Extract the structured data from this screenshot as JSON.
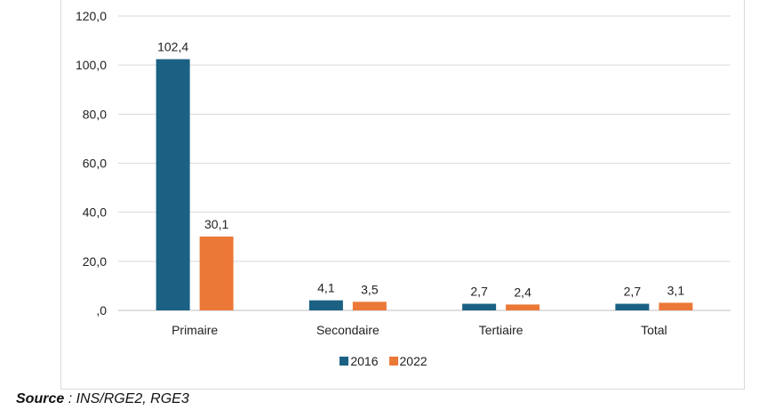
{
  "chart_data": {
    "type": "bar",
    "categories": [
      "Primaire",
      "Secondaire",
      "Tertiaire",
      "Total"
    ],
    "series": [
      {
        "name": "2016",
        "color": "#1b6184",
        "values": [
          102.4,
          4.1,
          2.7,
          2.7
        ],
        "labels": [
          "102,4",
          "4,1",
          "2,7",
          "2,7"
        ]
      },
      {
        "name": "2022",
        "color": "#ec7837",
        "values": [
          30.1,
          3.5,
          2.4,
          3.1
        ],
        "labels": [
          "30,1",
          "3,5",
          "2,4",
          "3,1"
        ]
      }
    ],
    "ylim": [
      0,
      120
    ],
    "yticks": [
      0,
      20,
      40,
      60,
      80,
      100,
      120
    ],
    "ytick_labels": [
      ",0",
      "20,0",
      "40,0",
      "60,0",
      "80,0",
      "100,0",
      "120,0"
    ],
    "grid": true,
    "legend_position": "bottom"
  },
  "legend": {
    "items": [
      {
        "label": "2016",
        "color": "#1b6184"
      },
      {
        "label": "2022",
        "color": "#ec7837"
      }
    ]
  },
  "source": {
    "key": "Source",
    "value": " : INS/RGE2, RGE3"
  },
  "colors": {
    "gridline": "#d9d9d9",
    "axis": "#bfbfbf"
  }
}
